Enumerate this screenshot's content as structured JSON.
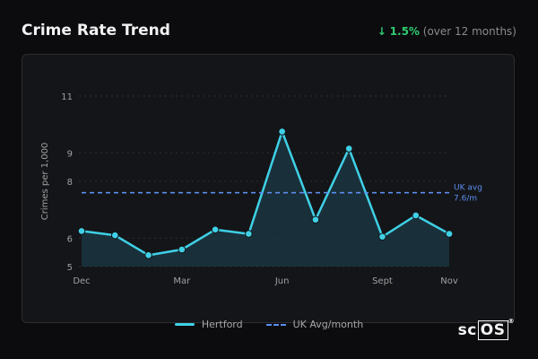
{
  "header": {
    "title": "Crime Rate Trend",
    "change_arrow": "↓",
    "change_value": "1.5%",
    "change_period": "(over 12 months)"
  },
  "chart_data": {
    "type": "line",
    "title": "Crime Rate Trend",
    "ylabel": "Crimes per 1,000",
    "xlabel": "",
    "ylim": [
      5,
      11
    ],
    "y_ticks": [
      5,
      6,
      8,
      9,
      11
    ],
    "x_tick_labels": [
      {
        "label": "Dec",
        "index": 0
      },
      {
        "label": "Mar",
        "index": 3
      },
      {
        "label": "Jun",
        "index": 6
      },
      {
        "label": "Sept",
        "index": 9
      },
      {
        "label": "Nov",
        "index": 11
      }
    ],
    "series": [
      {
        "name": "Hertford",
        "color": "#3fd0e6",
        "values": [
          6.25,
          6.1,
          5.4,
          5.6,
          6.3,
          6.15,
          9.75,
          6.65,
          9.15,
          6.05,
          6.8,
          6.15
        ]
      }
    ],
    "reference_line": {
      "name": "UK Avg/month",
      "value": 7.6,
      "label_line1": "UK avg",
      "label_line2": "7.6/m",
      "color": "#5b8def"
    },
    "grid": true,
    "legend_position": "bottom-center"
  },
  "legend": {
    "series_label": "Hertford",
    "reference_label": "UK Avg/month"
  },
  "branding": {
    "logo_prefix": "sc",
    "logo_boxed": "OS",
    "logo_mark": "®"
  }
}
